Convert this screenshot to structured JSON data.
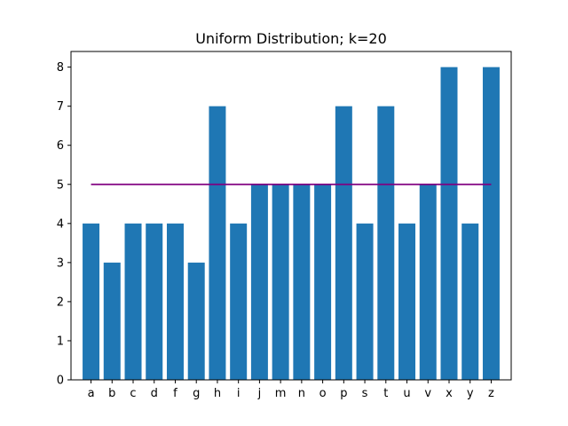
{
  "chart_data": {
    "type": "bar",
    "title": "Uniform Distribution; k=20",
    "xlabel": "",
    "ylabel": "",
    "categories": [
      "a",
      "b",
      "c",
      "d",
      "f",
      "g",
      "h",
      "i",
      "j",
      "m",
      "n",
      "o",
      "p",
      "s",
      "t",
      "u",
      "v",
      "x",
      "y",
      "z"
    ],
    "values": [
      4,
      3,
      4,
      4,
      4,
      3,
      7,
      4,
      5,
      5,
      5,
      5,
      7,
      4,
      7,
      4,
      5,
      8,
      4,
      8
    ],
    "ylim": [
      0,
      8.4
    ],
    "yticks": [
      0,
      1,
      2,
      3,
      4,
      5,
      6,
      7,
      8
    ],
    "reference_line": {
      "value": 5,
      "color": "#800080"
    },
    "bar_color": "#1f77b4",
    "grid": false,
    "legend": "none"
  }
}
